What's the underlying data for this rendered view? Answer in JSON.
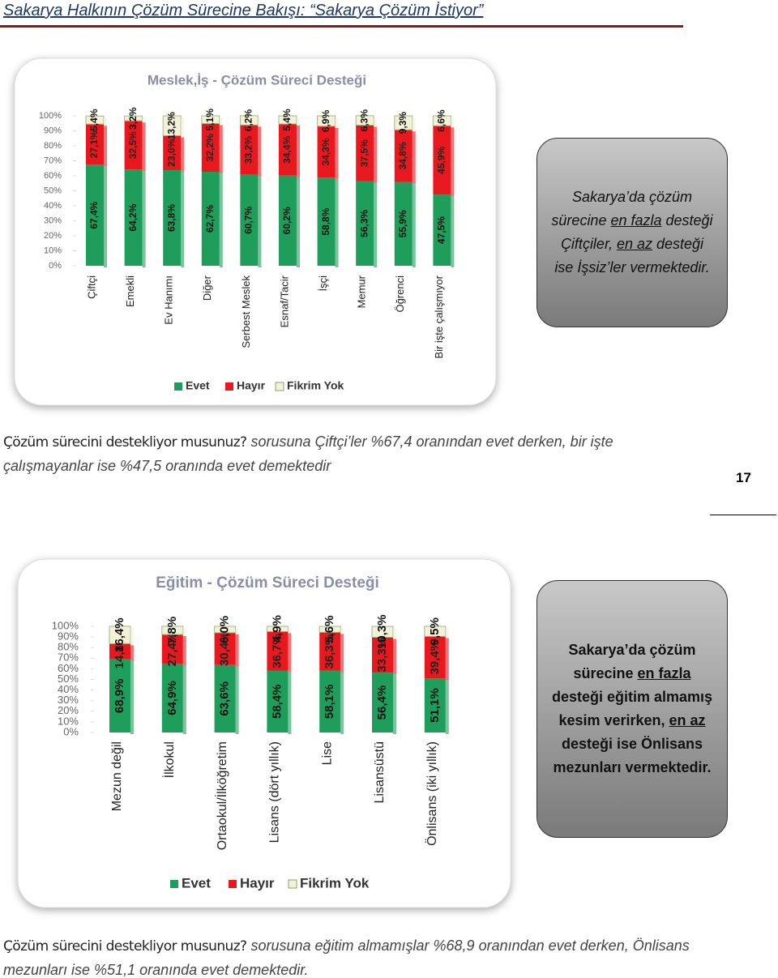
{
  "header": {
    "title": "Sakarya Halkının Çözüm Sürecine Bakışı: “Sakarya Çözüm İstiyor”"
  },
  "page_number": "17",
  "chart_data": [
    {
      "type": "bar",
      "stacked": true,
      "title": "Meslek,İş - Çözüm Süreci Desteği",
      "categories": [
        "Çiftçi",
        "Emekli",
        "Ev Hanımı",
        "Diğer",
        "Serbest Meslek",
        "Esnaf/Tacir",
        "İşçi",
        "Memur",
        "Öğrenci",
        "Bir işte çalışmıyor"
      ],
      "series": [
        {
          "name": "Evet",
          "color": "#1e9e5a",
          "values": [
            67.4,
            64.2,
            63.8,
            62.7,
            60.7,
            60.2,
            58.8,
            56.3,
            55.9,
            47.5
          ],
          "value_labels": [
            "67,4%",
            "64,2%",
            "63,8%",
            "62,7%",
            "60,7%",
            "60,2%",
            "58,8%",
            "56,3%",
            "55,9%",
            "47,5%"
          ]
        },
        {
          "name": "Hayır",
          "color": "#e8191e",
          "values": [
            27.1,
            32.5,
            23.0,
            32.2,
            33.2,
            34.4,
            34.3,
            37.5,
            34.8,
            45.9
          ],
          "value_labels": [
            "27,1%",
            "32,5%",
            "23,0%",
            "32,2%",
            "33,2%",
            "34,4%",
            "34,3%",
            "37,5%",
            "34,8%",
            "45,9%"
          ]
        },
        {
          "name": "Fikrim Yok",
          "color": "#f2f2d8",
          "values": [
            5.4,
            3.2,
            13.2,
            5.1,
            6.2,
            5.4,
            6.9,
            6.3,
            9.3,
            6.6
          ],
          "value_labels": [
            "5,4%",
            "3,2%",
            "13,2%",
            "5,1%",
            "6,2%",
            "5,4%",
            "6,9%",
            "6,3%",
            "9,3%",
            "6,6%"
          ]
        }
      ],
      "ylim": [
        0,
        100
      ],
      "yticks": [
        {
          "value": 0,
          "label": "0%"
        },
        {
          "value": 10,
          "label": "10%"
        },
        {
          "value": 20,
          "label": "20%"
        },
        {
          "value": 30,
          "label": "30%"
        },
        {
          "value": 40,
          "label": "40%"
        },
        {
          "value": 50,
          "label": "50%"
        },
        {
          "value": 60,
          "label": "60%"
        },
        {
          "value": 70,
          "label": "70%"
        },
        {
          "value": 80,
          "label": "80%"
        },
        {
          "value": 90,
          "label": "90%"
        },
        {
          "value": 100,
          "label": "100%"
        }
      ],
      "legend": "bottom"
    },
    {
      "type": "bar",
      "stacked": true,
      "title": "Eğitim - Çözüm Süreci Desteği",
      "categories": [
        "Mezun değil",
        "İlkokul",
        "Ortaokul/İlköğretim",
        "Lisans (dört yıllık)",
        "Lise",
        "Lisansüstü",
        "Önlisans (iki yıllık)"
      ],
      "series": [
        {
          "name": "Evet",
          "color": "#1e9e5a",
          "values": [
            68.9,
            64.9,
            63.6,
            58.4,
            58.1,
            56.4,
            51.1
          ],
          "value_labels": [
            "68,9%",
            "64,9%",
            "63,6%",
            "58,4%",
            "58,1%",
            "56,4%",
            "51,1%"
          ]
        },
        {
          "name": "Hayır",
          "color": "#e8191e",
          "values": [
            14.8,
            27.4,
            30.4,
            36.7,
            36.3,
            33.3,
            39.4
          ],
          "value_labels": [
            "14,8%",
            "27,4%",
            "30,4%",
            "36,7%",
            "36,3%",
            "33,3%",
            "39,4%"
          ]
        },
        {
          "name": "Fikrim Yok",
          "color": "#f2f2d8",
          "values": [
            16.4,
            7.8,
            6.0,
            4.9,
            5.6,
            10.3,
            9.5
          ],
          "value_labels": [
            "16,4%",
            "7,8%",
            "6,0%",
            "4,9%",
            "5,6%",
            "10,3%",
            "9,5%"
          ]
        }
      ],
      "ylim": [
        0,
        100
      ],
      "yticks": [
        {
          "value": 0,
          "label": "0%"
        },
        {
          "value": 10,
          "label": "10%"
        },
        {
          "value": 20,
          "label": "20%"
        },
        {
          "value": 30,
          "label": "30%"
        },
        {
          "value": 40,
          "label": "40%"
        },
        {
          "value": 50,
          "label": "50%"
        },
        {
          "value": 60,
          "label": "60%"
        },
        {
          "value": 70,
          "label": "70%"
        },
        {
          "value": 80,
          "label": "80%"
        },
        {
          "value": 90,
          "label": "90%"
        },
        {
          "value": 100,
          "label": "100%"
        }
      ],
      "legend": "bottom"
    }
  ],
  "callouts": [
    {
      "parts": [
        {
          "text": "Sakarya’da çözüm sürecine "
        },
        {
          "text": "en fazla",
          "underline": true
        },
        {
          "text": " desteği Çiftçiler, "
        },
        {
          "text": "en az",
          "underline": true
        },
        {
          "text": " desteği ise İşsiz’ler vermektedir."
        }
      ]
    },
    {
      "parts": [
        {
          "text": "Sakarya’da çözüm sürecine "
        },
        {
          "text": "en fazla",
          "underline": true
        },
        {
          "text": " desteği eğitim almamış kesim verirken, "
        },
        {
          "text": "en az",
          "underline": true
        },
        {
          "text": " desteği ise Önlisans mezunları vermektedir."
        }
      ]
    }
  ],
  "paragraphs": [
    {
      "parts": [
        {
          "text": "Çözüm sürecini destekliyor musunuz?",
          "italic": false
        },
        {
          "text": " sorusuna Çiftçi’ler %67,4 oranından evet derken, bir işte çalışmayanlar ise %47,5 oranında evet demektedir",
          "italic": true
        }
      ]
    },
    {
      "parts": [
        {
          "text": "Çözüm sürecini destekliyor musunuz?",
          "italic": false
        },
        {
          "text": " sorusuna eğitim almamışlar %68,9 oranından evet derken, Önlisans mezunları ise %51,1 oranında evet demektedir.",
          "italic": true
        }
      ]
    }
  ]
}
